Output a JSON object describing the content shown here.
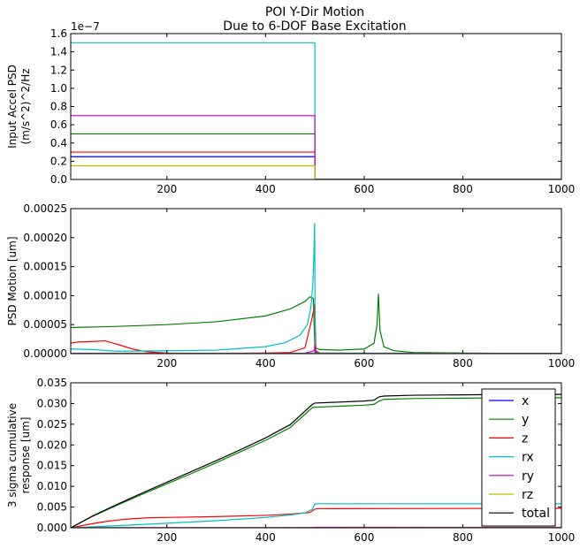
{
  "figure": {
    "title_line1": "POI Y-Dir Motion",
    "title_line2": "Due to 6-DOF Base Excitation"
  },
  "colors": {
    "x": "#0000ff",
    "y": "#008000",
    "z": "#ff0000",
    "rx": "#00bfbf",
    "ry": "#bf00bf",
    "rz": "#bfbf00",
    "total": "#000000"
  },
  "chart_data": [
    {
      "type": "line",
      "name": "input-accel-psd",
      "title": "POI Y-Dir Motion\nDue to 6-DOF Base Excitation",
      "ylabel_line1": "Input Accel PSD",
      "ylabel_line2": "(m/s^2)^2/Hz",
      "offset_label": "1e−7",
      "xlim": [
        5,
        1000
      ],
      "ylim": [
        0,
        1.6
      ],
      "xticks": [
        200,
        400,
        600,
        800,
        1000
      ],
      "yticks": [
        0.0,
        0.2,
        0.4,
        0.6,
        0.8,
        1.0,
        1.2,
        1.4,
        1.6
      ],
      "ytick_labels": [
        "0.0",
        "0.2",
        "0.4",
        "0.6",
        "0.8",
        "1.0",
        "1.2",
        "1.4",
        "1.6"
      ],
      "series": [
        {
          "name": "x",
          "level": 0.25,
          "cutoff": 500
        },
        {
          "name": "y",
          "level": 0.5,
          "cutoff": 500
        },
        {
          "name": "z",
          "level": 0.3,
          "cutoff": 500
        },
        {
          "name": "rx",
          "level": 1.5,
          "cutoff": 500
        },
        {
          "name": "ry",
          "level": 0.7,
          "cutoff": 500
        },
        {
          "name": "rz",
          "level": 0.15,
          "cutoff": 500
        }
      ]
    },
    {
      "type": "line",
      "name": "psd-motion",
      "ylabel_line1": "PSD Motion [um]",
      "xlim": [
        5,
        1000
      ],
      "ylim": [
        0,
        0.00025
      ],
      "xticks": [
        200,
        400,
        600,
        800,
        1000
      ],
      "yticks": [
        0,
        5e-05,
        0.0001,
        0.00015,
        0.0002,
        0.00025
      ],
      "ytick_labels": [
        "0.00000",
        "0.00005",
        "0.00010",
        "0.00015",
        "0.00020",
        "0.00025"
      ],
      "series": [
        {
          "name": "y",
          "x": [
            5,
            100,
            200,
            300,
            400,
            450,
            480,
            490,
            497,
            500,
            510,
            550,
            600,
            620,
            626,
            629,
            632,
            640,
            660,
            700,
            800,
            900,
            1000
          ],
          "values": [
            4.5e-05,
            4.7e-05,
            5e-05,
            5.5e-05,
            6.5e-05,
            7.7e-05,
            9e-05,
            9.8e-05,
            9.5e-05,
            1e-05,
            7e-06,
            6e-06,
            8e-06,
            1.8e-05,
            5e-05,
            0.000103,
            4e-05,
            1.2e-05,
            5e-06,
            2e-06,
            1e-06,
            5e-07,
            3e-07
          ]
        },
        {
          "name": "z",
          "x": [
            5,
            20,
            50,
            75,
            100,
            130,
            160,
            200,
            300,
            400,
            450,
            480,
            494,
            500,
            502,
            510,
            600,
            1000
          ],
          "values": [
            1.8e-05,
            2e-05,
            2.1e-05,
            2.2e-05,
            1.6e-05,
            8e-06,
            3e-06,
            1e-06,
            5e-07,
            1e-06,
            2e-06,
            1e-05,
            6e-05,
            8.5e-05,
            5e-06,
            1e-06,
            5e-07,
            2e-07
          ]
        },
        {
          "name": "rx",
          "x": [
            5,
            50,
            100,
            200,
            300,
            400,
            440,
            470,
            485,
            492,
            496,
            498,
            499.5,
            500,
            500.5,
            502,
            510,
            1000
          ],
          "values": [
            8e-06,
            7e-06,
            4e-06,
            5e-06,
            6e-06,
            1.2e-05,
            1.9e-05,
            3.2e-05,
            5e-05,
            8e-05,
            0.00012,
            0.00017,
            0.000225,
            0.00015,
            1e-05,
            2e-06,
            1e-06,
            3e-07
          ]
        },
        {
          "name": "ry",
          "x": [
            5,
            480,
            499,
            500,
            501,
            505,
            1000
          ],
          "values": [
            5e-07,
            8e-07,
            5e-06,
            1.5e-05,
            4e-06,
            5e-07,
            1e-07
          ]
        },
        {
          "name": "x",
          "x": [
            5,
            499,
            500,
            501,
            1000
          ],
          "values": [
            2e-07,
            5e-07,
            2e-06,
            3e-07,
            1e-07
          ]
        },
        {
          "name": "rz",
          "x": [
            5,
            499,
            500,
            501,
            1000
          ],
          "values": [
            1e-07,
            3e-07,
            1e-06,
            2e-07,
            1e-07
          ]
        }
      ]
    },
    {
      "type": "line",
      "name": "cumulative-response",
      "ylabel_line1": "3 sigma cumulative",
      "ylabel_line2": "response [um]",
      "xlim": [
        5,
        1000
      ],
      "ylim": [
        0,
        0.035
      ],
      "xticks": [
        200,
        400,
        600,
        800,
        1000
      ],
      "yticks": [
        0,
        0.005,
        0.01,
        0.015,
        0.02,
        0.025,
        0.03,
        0.035
      ],
      "ytick_labels": [
        "0.000",
        "0.005",
        "0.010",
        "0.015",
        "0.020",
        "0.025",
        "0.030",
        "0.035"
      ],
      "legend": {
        "location": "right",
        "entries": [
          "x",
          "y",
          "z",
          "rx",
          "ry",
          "rz",
          "total"
        ]
      },
      "series": [
        {
          "name": "x",
          "x": [
            5,
            1000
          ],
          "values": [
            0,
            5e-05
          ]
        },
        {
          "name": "y",
          "x": [
            5,
            50,
            100,
            150,
            200,
            250,
            300,
            350,
            400,
            450,
            495,
            500,
            600,
            620,
            630,
            640,
            700,
            800,
            900,
            1000
          ],
          "values": [
            0,
            0.0028,
            0.0055,
            0.0081,
            0.0106,
            0.0131,
            0.0157,
            0.0184,
            0.0211,
            0.0242,
            0.029,
            0.0291,
            0.0296,
            0.0298,
            0.0306,
            0.031,
            0.0312,
            0.0313,
            0.0314,
            0.0314
          ]
        },
        {
          "name": "z",
          "x": [
            5,
            40,
            80,
            120,
            160,
            200,
            300,
            400,
            450,
            490,
            495,
            500,
            505,
            1000
          ],
          "values": [
            0,
            0.0008,
            0.0016,
            0.0021,
            0.0024,
            0.0025,
            0.0027,
            0.003,
            0.0033,
            0.0037,
            0.0041,
            0.0045,
            0.0046,
            0.0047
          ]
        },
        {
          "name": "rx",
          "x": [
            5,
            100,
            200,
            300,
            400,
            450,
            480,
            495,
            500,
            505,
            1000
          ],
          "values": [
            0,
            0.0005,
            0.0011,
            0.0017,
            0.0025,
            0.0031,
            0.0036,
            0.0045,
            0.0057,
            0.0058,
            0.0058
          ]
        },
        {
          "name": "ry",
          "x": [
            5,
            498,
            500,
            1000
          ],
          "values": [
            0,
            5e-05,
            0.0001,
            0.0001
          ]
        },
        {
          "name": "rz",
          "x": [
            5,
            1000
          ],
          "values": [
            0,
            3e-05
          ]
        },
        {
          "name": "total",
          "x": [
            5,
            50,
            100,
            150,
            200,
            250,
            300,
            350,
            400,
            450,
            495,
            500,
            600,
            620,
            630,
            640,
            700,
            800,
            900,
            1000
          ],
          "values": [
            0,
            0.0029,
            0.0057,
            0.0084,
            0.011,
            0.0136,
            0.0162,
            0.0189,
            0.0217,
            0.0249,
            0.0298,
            0.0301,
            0.0306,
            0.0308,
            0.0316,
            0.0318,
            0.032,
            0.0321,
            0.0322,
            0.0322
          ]
        }
      ]
    }
  ]
}
